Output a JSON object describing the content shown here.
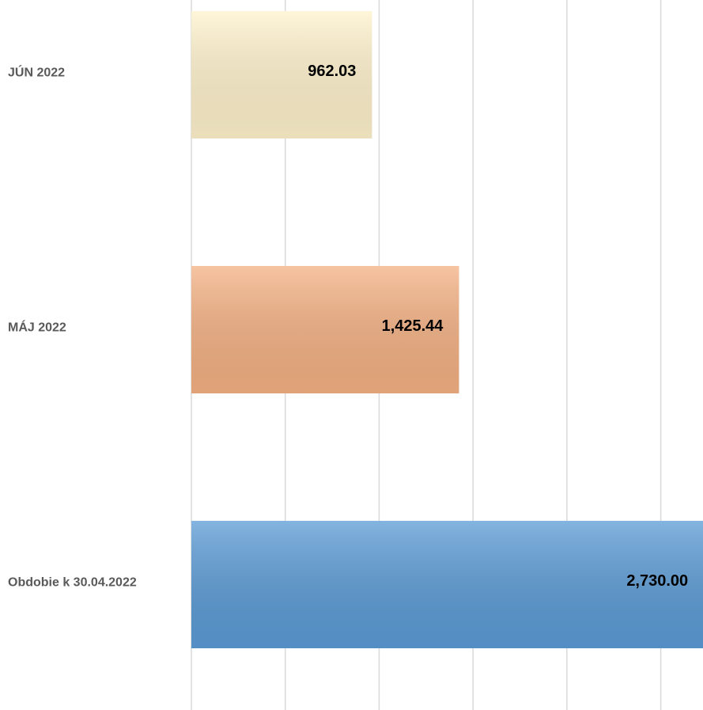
{
  "chart_data": {
    "type": "barh",
    "categories": [
      "JÚN 2022",
      "MÁJ 2022",
      "Obdobie k 30.04.2022"
    ],
    "values": [
      962.03,
      1425.44,
      2730.0
    ],
    "value_labels": [
      "962.03",
      "1,425.44",
      "2,730.00"
    ],
    "colors": [
      "#fff2cc",
      "#f4b183",
      "#5b9bd5"
    ],
    "xlim": [
      0,
      2725
    ],
    "xticks": [
      0,
      500,
      1000,
      1500,
      2000,
      2500
    ],
    "grid": true
  }
}
